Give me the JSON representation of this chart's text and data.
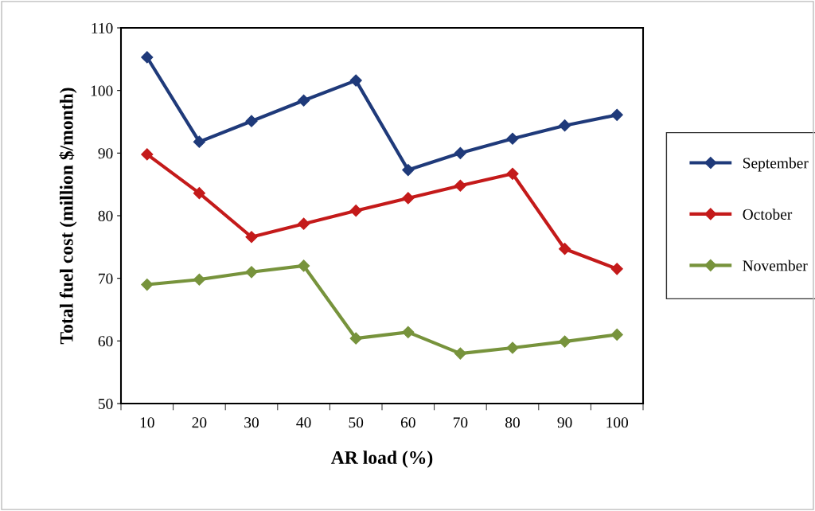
{
  "chart_data": {
    "type": "line",
    "xlabel": "AR load (%)",
    "ylabel": "Total fuel cost (million $/month)",
    "categories": [
      "10",
      "20",
      "30",
      "40",
      "50",
      "60",
      "70",
      "80",
      "90",
      "100"
    ],
    "series": [
      {
        "name": "September",
        "color": "#1f3a7a",
        "values": [
          105.3,
          91.8,
          95.1,
          98.4,
          101.6,
          87.3,
          90.0,
          92.3,
          94.4,
          96.1
        ]
      },
      {
        "name": "October",
        "color": "#c41a1a",
        "values": [
          89.8,
          83.6,
          76.6,
          78.7,
          80.8,
          82.8,
          84.8,
          86.7,
          74.7,
          71.5
        ]
      },
      {
        "name": "November",
        "color": "#77933c",
        "values": [
          69.0,
          69.8,
          71.0,
          72.0,
          60.4,
          61.4,
          58.0,
          58.9,
          59.9,
          61.0
        ]
      }
    ],
    "ylim": [
      50,
      110
    ],
    "yticks": [
      50,
      60,
      70,
      80,
      90,
      100,
      110
    ],
    "grid": false,
    "legend": "right",
    "marker": "diamond",
    "line_style": "solid"
  }
}
